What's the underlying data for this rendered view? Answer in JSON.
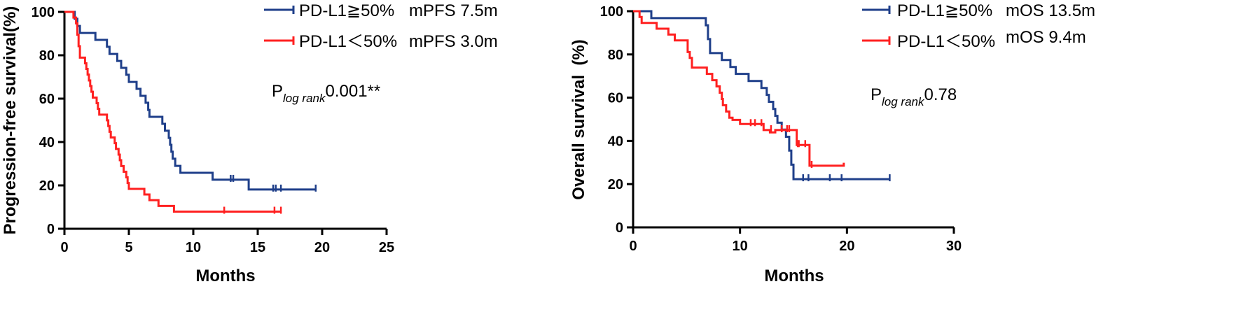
{
  "colors": {
    "high": "#1f3f8a",
    "low": "#ff2020"
  },
  "chart_data": [
    {
      "type": "line",
      "ylabel": "Progression-free survival(%)",
      "xlabel": "Months",
      "xlim": [
        0,
        25
      ],
      "ylim": [
        0,
        100
      ],
      "xticks": [
        0,
        5,
        10,
        15,
        20,
        25
      ],
      "yticks": [
        0,
        20,
        40,
        60,
        80,
        100
      ],
      "legend": [
        {
          "series": "PD-L1≧50%",
          "stat": "mPFS 7.5m"
        },
        {
          "series": "PD-L1＜50%",
          "stat": "mPFS 3.0m"
        }
      ],
      "annotation": {
        "prefix": "P",
        "sub": "log rank",
        "value": "0.001**"
      },
      "series": [
        {
          "name": "PD-L1≧50%",
          "color_key": "high",
          "steps": [
            [
              0,
              100
            ],
            [
              0.6,
              100
            ],
            [
              0.8,
              96.8
            ],
            [
              1.0,
              93.5
            ],
            [
              1.2,
              90.3
            ],
            [
              2.4,
              87.1
            ],
            [
              3.3,
              83.9
            ],
            [
              3.5,
              80.6
            ],
            [
              4.1,
              77.4
            ],
            [
              4.4,
              74.2
            ],
            [
              4.8,
              71.0
            ],
            [
              5.0,
              67.7
            ],
            [
              5.6,
              64.5
            ],
            [
              5.9,
              61.3
            ],
            [
              6.3,
              58.1
            ],
            [
              6.5,
              54.8
            ],
            [
              6.6,
              51.6
            ],
            [
              7.6,
              48.4
            ],
            [
              7.8,
              45.2
            ],
            [
              8.1,
              41.9
            ],
            [
              8.2,
              38.7
            ],
            [
              8.3,
              35.5
            ],
            [
              8.4,
              32.3
            ],
            [
              8.6,
              29.0
            ],
            [
              9.0,
              25.8
            ],
            [
              11.5,
              22.6
            ],
            [
              14.3,
              18.1
            ],
            [
              19.5,
              18.1
            ]
          ],
          "censors": [
            [
              12.9,
              22.6
            ],
            [
              13.1,
              22.6
            ],
            [
              16.2,
              18.1
            ],
            [
              16.4,
              18.1
            ],
            [
              16.8,
              18.1
            ],
            [
              19.5,
              18.1
            ]
          ]
        },
        {
          "name": "PD-L1＜50%",
          "color_key": "low",
          "steps": [
            [
              0,
              100
            ],
            [
              0.5,
              100
            ],
            [
              0.7,
              97.4
            ],
            [
              0.9,
              94.7
            ],
            [
              1.0,
              89.5
            ],
            [
              1.1,
              84.2
            ],
            [
              1.2,
              78.9
            ],
            [
              1.6,
              76.3
            ],
            [
              1.7,
              73.7
            ],
            [
              1.8,
              71.1
            ],
            [
              1.9,
              68.4
            ],
            [
              2.0,
              65.8
            ],
            [
              2.1,
              63.2
            ],
            [
              2.2,
              60.5
            ],
            [
              2.5,
              57.9
            ],
            [
              2.6,
              55.3
            ],
            [
              2.7,
              52.6
            ],
            [
              3.3,
              50.0
            ],
            [
              3.4,
              47.4
            ],
            [
              3.5,
              44.7
            ],
            [
              3.6,
              42.1
            ],
            [
              3.9,
              39.5
            ],
            [
              4.0,
              36.8
            ],
            [
              4.2,
              34.2
            ],
            [
              4.3,
              31.6
            ],
            [
              4.4,
              28.9
            ],
            [
              4.6,
              26.3
            ],
            [
              4.8,
              23.7
            ],
            [
              4.9,
              21.1
            ],
            [
              5.0,
              18.4
            ],
            [
              6.2,
              15.8
            ],
            [
              6.6,
              13.2
            ],
            [
              7.3,
              10.5
            ],
            [
              8.5,
              7.9
            ],
            [
              16.8,
              7.9
            ]
          ],
          "censors": [
            [
              12.4,
              7.9
            ],
            [
              16.3,
              7.9
            ],
            [
              16.8,
              7.9
            ]
          ]
        }
      ]
    },
    {
      "type": "line",
      "ylabel": "Overall survival  (%)",
      "xlabel": "Months",
      "xlim": [
        0,
        30
      ],
      "ylim": [
        0,
        100
      ],
      "xticks": [
        0,
        10,
        20,
        30
      ],
      "yticks": [
        0,
        20,
        40,
        60,
        80,
        100
      ],
      "legend": [
        {
          "series": "PD-L1≧50%",
          "stat": "mOS 13.5m"
        },
        {
          "series": "PD-L1＜50%",
          "stat": "mOS 9.4m"
        }
      ],
      "annotation": {
        "prefix": "P",
        "sub": "log rank",
        "value": "0.78"
      },
      "series": [
        {
          "name": "PD-L1≧50%",
          "color_key": "high",
          "steps": [
            [
              0,
              100
            ],
            [
              1.6,
              100
            ],
            [
              1.7,
              96.8
            ],
            [
              6.6,
              96.8
            ],
            [
              6.8,
              93.5
            ],
            [
              7.0,
              87.1
            ],
            [
              7.2,
              80.6
            ],
            [
              8.3,
              77.4
            ],
            [
              9.1,
              74.2
            ],
            [
              9.6,
              71.0
            ],
            [
              10.8,
              67.7
            ],
            [
              12.0,
              64.5
            ],
            [
              12.5,
              61.3
            ],
            [
              12.7,
              58.1
            ],
            [
              13.1,
              54.8
            ],
            [
              13.3,
              51.6
            ],
            [
              13.5,
              48.4
            ],
            [
              13.9,
              45.2
            ],
            [
              14.3,
              41.9
            ],
            [
              14.6,
              35.5
            ],
            [
              14.8,
              29.0
            ],
            [
              15.0,
              22.3
            ],
            [
              24.0,
              22.3
            ]
          ],
          "censors": [
            [
              15.9,
              22.3
            ],
            [
              16.4,
              22.3
            ],
            [
              18.4,
              22.3
            ],
            [
              19.5,
              22.3
            ],
            [
              24.0,
              22.3
            ]
          ]
        },
        {
          "name": "PD-L1＜50%",
          "color_key": "low",
          "steps": [
            [
              0,
              100
            ],
            [
              0.5,
              100
            ],
            [
              0.6,
              97.3
            ],
            [
              0.8,
              94.6
            ],
            [
              2.2,
              91.9
            ],
            [
              3.3,
              89.2
            ],
            [
              3.9,
              86.5
            ],
            [
              5.1,
              81.1
            ],
            [
              5.3,
              78.4
            ],
            [
              5.5,
              73.9
            ],
            [
              6.9,
              71.0
            ],
            [
              7.4,
              68.1
            ],
            [
              7.8,
              65.2
            ],
            [
              8.1,
              62.3
            ],
            [
              8.3,
              59.4
            ],
            [
              8.4,
              56.5
            ],
            [
              8.7,
              53.6
            ],
            [
              9.0,
              50.7
            ],
            [
              9.3,
              49.7
            ],
            [
              10.0,
              47.8
            ],
            [
              12.2,
              45.0
            ],
            [
              12.8,
              43.9
            ],
            [
              13.3,
              45.0
            ],
            [
              15.3,
              38.1
            ],
            [
              16.4,
              38.1
            ],
            [
              16.5,
              28.5
            ],
            [
              19.7,
              28.5
            ],
            [
              19.7,
              29.9
            ]
          ],
          "censors": [
            [
              11.0,
              47.8
            ],
            [
              11.4,
              47.8
            ],
            [
              12.0,
              47.8
            ],
            [
              12.9,
              45.0
            ],
            [
              13.9,
              45.0
            ],
            [
              14.4,
              45.0
            ],
            [
              14.6,
              45.0
            ],
            [
              15.4,
              38.1
            ],
            [
              15.5,
              38.1
            ],
            [
              16.1,
              38.1
            ],
            [
              16.7,
              28.5
            ]
          ]
        }
      ]
    }
  ]
}
